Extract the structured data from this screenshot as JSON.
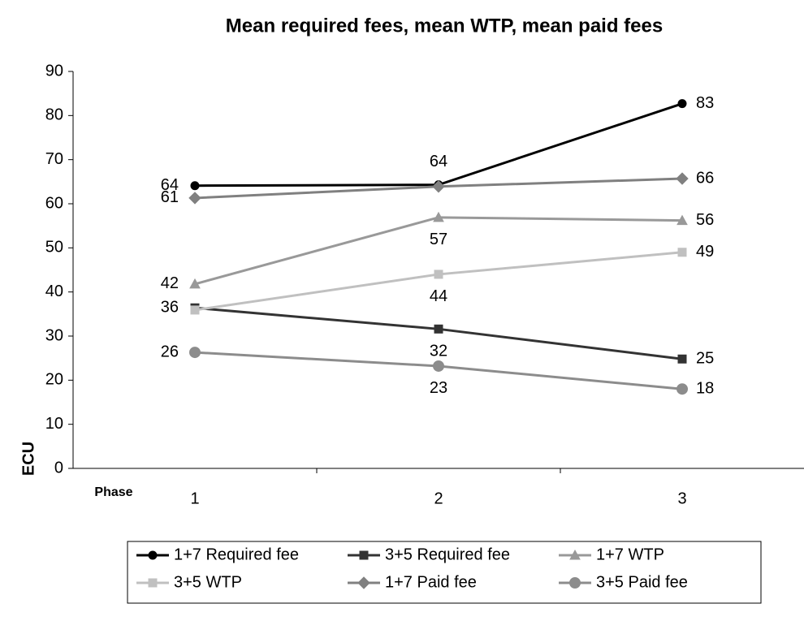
{
  "chart_data": {
    "type": "line",
    "title": "Mean required fees, mean WTP, mean paid fees",
    "y_label": "ECU",
    "x_label": "Phase",
    "categories": [
      "1",
      "2",
      "3"
    ],
    "ylim": [
      0,
      90
    ],
    "yticks": [
      0,
      10,
      20,
      30,
      40,
      50,
      60,
      70,
      80,
      90
    ],
    "grid": false,
    "legend": "bottom",
    "series": [
      {
        "name": "1+7 Required fee",
        "color": "#000000",
        "marker": "circle",
        "values": [
          64.1,
          64.3,
          82.7
        ],
        "value_labels": [
          "64",
          "64",
          "83"
        ]
      },
      {
        "name": "3+5 Required fee",
        "color": "#333333",
        "marker": "square",
        "values": [
          36.4,
          31.6,
          24.8
        ],
        "value_labels": [
          "36",
          "32",
          "25"
        ]
      },
      {
        "name": "1+7 WTP",
        "color": "#999999",
        "marker": "triangle",
        "values": [
          41.8,
          56.9,
          56.2
        ],
        "value_labels": [
          "42",
          "57",
          "56"
        ]
      },
      {
        "name": "3+5 WTP",
        "color": "#c0c0c0",
        "marker": "square",
        "values": [
          35.9,
          44,
          49
        ],
        "value_labels": [
          null,
          "44",
          "49"
        ]
      },
      {
        "name": "1+7 Paid fee",
        "color": "#808080",
        "marker": "diamond",
        "values": [
          61.3,
          63.9,
          65.7
        ],
        "value_labels": [
          "61",
          null,
          "66"
        ]
      },
      {
        "name": "3+5 Paid fee",
        "color": "#8c8c8c",
        "marker": "bigcircle",
        "values": [
          26.3,
          23.2,
          18
        ],
        "value_labels": [
          "26",
          "23",
          "18"
        ]
      }
    ]
  }
}
